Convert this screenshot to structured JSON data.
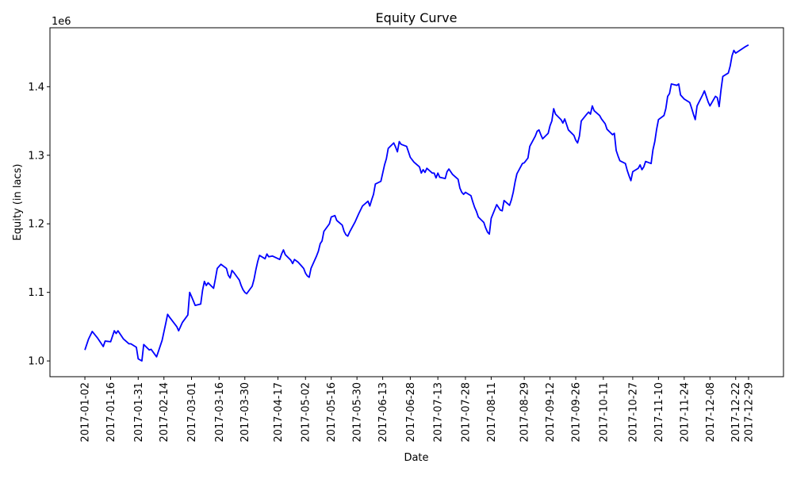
{
  "chart_data": {
    "type": "line",
    "title": "Equity Curve",
    "xlabel": "Date",
    "ylabel": "Equity (in lacs)",
    "y_offset_label": "1e6",
    "color": "#0000ff",
    "x": [
      "2017-01-02",
      "2017-01-04",
      "2017-01-06",
      "2017-01-09",
      "2017-01-12",
      "2017-01-13",
      "2017-01-16",
      "2017-01-18",
      "2017-01-19",
      "2017-01-20",
      "2017-01-23",
      "2017-01-26",
      "2017-01-27",
      "2017-01-30",
      "2017-01-31",
      "2017-02-02",
      "2017-02-03",
      "2017-02-06",
      "2017-02-07",
      "2017-02-10",
      "2017-02-13",
      "2017-02-15",
      "2017-02-16",
      "2017-02-17",
      "2017-02-21",
      "2017-02-22",
      "2017-02-24",
      "2017-02-27",
      "2017-02-28",
      "2017-03-01",
      "2017-03-03",
      "2017-03-06",
      "2017-03-07",
      "2017-03-08",
      "2017-03-09",
      "2017-03-10",
      "2017-03-13",
      "2017-03-14",
      "2017-03-15",
      "2017-03-17",
      "2017-03-20",
      "2017-03-21",
      "2017-03-22",
      "2017-03-23",
      "2017-03-24",
      "2017-03-27",
      "2017-03-28",
      "2017-03-29",
      "2017-03-30",
      "2017-03-31",
      "2017-04-03",
      "2017-04-04",
      "2017-04-05",
      "2017-04-06",
      "2017-04-07",
      "2017-04-10",
      "2017-04-11",
      "2017-04-12",
      "2017-04-14",
      "2017-04-18",
      "2017-04-19",
      "2017-04-20",
      "2017-04-21",
      "2017-04-24",
      "2017-04-25",
      "2017-04-26",
      "2017-04-28",
      "2017-05-01",
      "2017-05-02",
      "2017-05-03",
      "2017-05-04",
      "2017-05-05",
      "2017-05-08",
      "2017-05-09",
      "2017-05-10",
      "2017-05-11",
      "2017-05-12",
      "2017-05-15",
      "2017-05-16",
      "2017-05-18",
      "2017-05-19",
      "2017-05-22",
      "2017-05-23",
      "2017-05-24",
      "2017-05-25",
      "2017-05-26",
      "2017-05-29",
      "2017-05-31",
      "2017-06-02",
      "2017-06-05",
      "2017-06-06",
      "2017-06-07",
      "2017-06-08",
      "2017-06-09",
      "2017-06-12",
      "2017-06-13",
      "2017-06-14",
      "2017-06-15",
      "2017-06-16",
      "2017-06-19",
      "2017-06-20",
      "2017-06-21",
      "2017-06-22",
      "2017-06-23",
      "2017-06-26",
      "2017-06-27",
      "2017-06-28",
      "2017-06-30",
      "2017-07-03",
      "2017-07-04",
      "2017-07-05",
      "2017-07-06",
      "2017-07-07",
      "2017-07-10",
      "2017-07-11",
      "2017-07-12",
      "2017-07-13",
      "2017-07-14",
      "2017-07-17",
      "2017-07-18",
      "2017-07-19",
      "2017-07-21",
      "2017-07-24",
      "2017-07-25",
      "2017-07-26",
      "2017-07-27",
      "2017-07-28",
      "2017-07-31",
      "2017-08-01",
      "2017-08-02",
      "2017-08-03",
      "2017-08-04",
      "2017-08-07",
      "2017-08-08",
      "2017-08-09",
      "2017-08-10",
      "2017-08-11",
      "2017-08-14",
      "2017-08-15",
      "2017-08-16",
      "2017-08-17",
      "2017-08-18",
      "2017-08-21",
      "2017-08-22",
      "2017-08-23",
      "2017-08-24",
      "2017-08-25",
      "2017-08-28",
      "2017-08-29",
      "2017-08-31",
      "2017-09-01",
      "2017-09-04",
      "2017-09-05",
      "2017-09-06",
      "2017-09-07",
      "2017-09-08",
      "2017-09-11",
      "2017-09-12",
      "2017-09-13",
      "2017-09-14",
      "2017-09-15",
      "2017-09-18",
      "2017-09-19",
      "2017-09-20",
      "2017-09-21",
      "2017-09-22",
      "2017-09-25",
      "2017-09-26",
      "2017-09-27",
      "2017-09-28",
      "2017-09-29",
      "2017-10-02",
      "2017-10-03",
      "2017-10-04",
      "2017-10-05",
      "2017-10-06",
      "2017-10-09",
      "2017-10-10",
      "2017-10-12",
      "2017-10-13",
      "2017-10-16",
      "2017-10-17",
      "2017-10-18",
      "2017-10-19",
      "2017-10-20",
      "2017-10-23",
      "2017-10-24",
      "2017-10-25",
      "2017-10-26",
      "2017-10-27",
      "2017-10-30",
      "2017-10-31",
      "2017-11-01",
      "2017-11-02",
      "2017-11-03",
      "2017-11-06",
      "2017-11-07",
      "2017-11-08",
      "2017-11-09",
      "2017-11-10",
      "2017-11-13",
      "2017-11-14",
      "2017-11-15",
      "2017-11-16",
      "2017-11-17",
      "2017-11-20",
      "2017-11-21",
      "2017-11-22",
      "2017-11-24",
      "2017-11-27",
      "2017-11-28",
      "2017-11-29",
      "2017-11-30",
      "2017-12-01",
      "2017-12-04",
      "2017-12-05",
      "2017-12-06",
      "2017-12-07",
      "2017-12-08",
      "2017-12-11",
      "2017-12-12",
      "2017-12-13",
      "2017-12-14",
      "2017-12-15",
      "2017-12-18",
      "2017-12-19",
      "2017-12-20",
      "2017-12-21",
      "2017-12-22",
      "2017-12-27",
      "2017-12-29"
    ],
    "values": [
      1.016,
      1.032,
      1.043,
      1.033,
      1.021,
      1.029,
      1.028,
      1.044,
      1.04,
      1.044,
      1.032,
      1.025,
      1.025,
      1.02,
      1.003,
      1.0,
      1.024,
      1.016,
      1.017,
      1.006,
      1.03,
      1.055,
      1.068,
      1.064,
      1.05,
      1.044,
      1.056,
      1.067,
      1.1,
      1.094,
      1.081,
      1.083,
      1.103,
      1.116,
      1.11,
      1.114,
      1.106,
      1.12,
      1.135,
      1.141,
      1.135,
      1.125,
      1.121,
      1.132,
      1.129,
      1.118,
      1.11,
      1.104,
      1.1,
      1.098,
      1.109,
      1.119,
      1.133,
      1.145,
      1.154,
      1.149,
      1.156,
      1.152,
      1.153,
      1.148,
      1.156,
      1.162,
      1.155,
      1.147,
      1.142,
      1.148,
      1.144,
      1.135,
      1.128,
      1.124,
      1.122,
      1.135,
      1.153,
      1.16,
      1.171,
      1.175,
      1.189,
      1.2,
      1.21,
      1.212,
      1.205,
      1.198,
      1.189,
      1.184,
      1.182,
      1.188,
      1.203,
      1.215,
      1.226,
      1.233,
      1.226,
      1.235,
      1.243,
      1.258,
      1.262,
      1.274,
      1.286,
      1.295,
      1.31,
      1.318,
      1.312,
      1.305,
      1.32,
      1.316,
      1.313,
      1.305,
      1.297,
      1.29,
      1.283,
      1.274,
      1.279,
      1.275,
      1.281,
      1.274,
      1.274,
      1.267,
      1.274,
      1.268,
      1.266,
      1.276,
      1.28,
      1.272,
      1.265,
      1.252,
      1.246,
      1.243,
      1.246,
      1.241,
      1.232,
      1.224,
      1.218,
      1.21,
      1.202,
      1.194,
      1.188,
      1.185,
      1.208,
      1.228,
      1.224,
      1.22,
      1.219,
      1.234,
      1.227,
      1.235,
      1.246,
      1.261,
      1.273,
      1.288,
      1.289,
      1.296,
      1.313,
      1.328,
      1.335,
      1.337,
      1.33,
      1.324,
      1.332,
      1.343,
      1.35,
      1.368,
      1.36,
      1.352,
      1.347,
      1.353,
      1.345,
      1.337,
      1.329,
      1.322,
      1.318,
      1.328,
      1.35,
      1.36,
      1.363,
      1.36,
      1.372,
      1.365,
      1.358,
      1.353,
      1.346,
      1.338,
      1.33,
      1.332,
      1.307,
      1.299,
      1.292,
      1.288,
      1.278,
      1.27,
      1.263,
      1.276,
      1.281,
      1.286,
      1.279,
      1.283,
      1.291,
      1.288,
      1.308,
      1.32,
      1.338,
      1.352,
      1.358,
      1.368,
      1.386,
      1.39,
      1.404,
      1.402,
      1.404,
      1.388,
      1.382,
      1.377,
      1.369,
      1.36,
      1.352,
      1.372,
      1.388,
      1.394,
      1.386,
      1.378,
      1.372,
      1.386,
      1.384,
      1.371,
      1.395,
      1.415,
      1.42,
      1.43,
      1.445,
      1.453,
      1.449,
      1.458,
      1.461
    ],
    "xlim": [
      "2016-12-14",
      "2018-01-17"
    ],
    "xticks": [
      "2017-01-02",
      "2017-01-16",
      "2017-01-31",
      "2017-02-14",
      "2017-03-01",
      "2017-03-16",
      "2017-03-30",
      "2017-04-17",
      "2017-05-02",
      "2017-05-16",
      "2017-05-30",
      "2017-06-13",
      "2017-06-28",
      "2017-07-13",
      "2017-07-28",
      "2017-08-11",
      "2017-08-29",
      "2017-09-12",
      "2017-09-26",
      "2017-10-11",
      "2017-10-27",
      "2017-11-10",
      "2017-11-24",
      "2017-12-08",
      "2017-12-22",
      "2017-12-29"
    ],
    "ylim": [
      0.977,
      1.486
    ],
    "yticks": [
      {
        "value": 1,
        "label": "1.0"
      },
      1.1,
      1.2,
      1.3,
      1.4
    ],
    "grid": false
  }
}
